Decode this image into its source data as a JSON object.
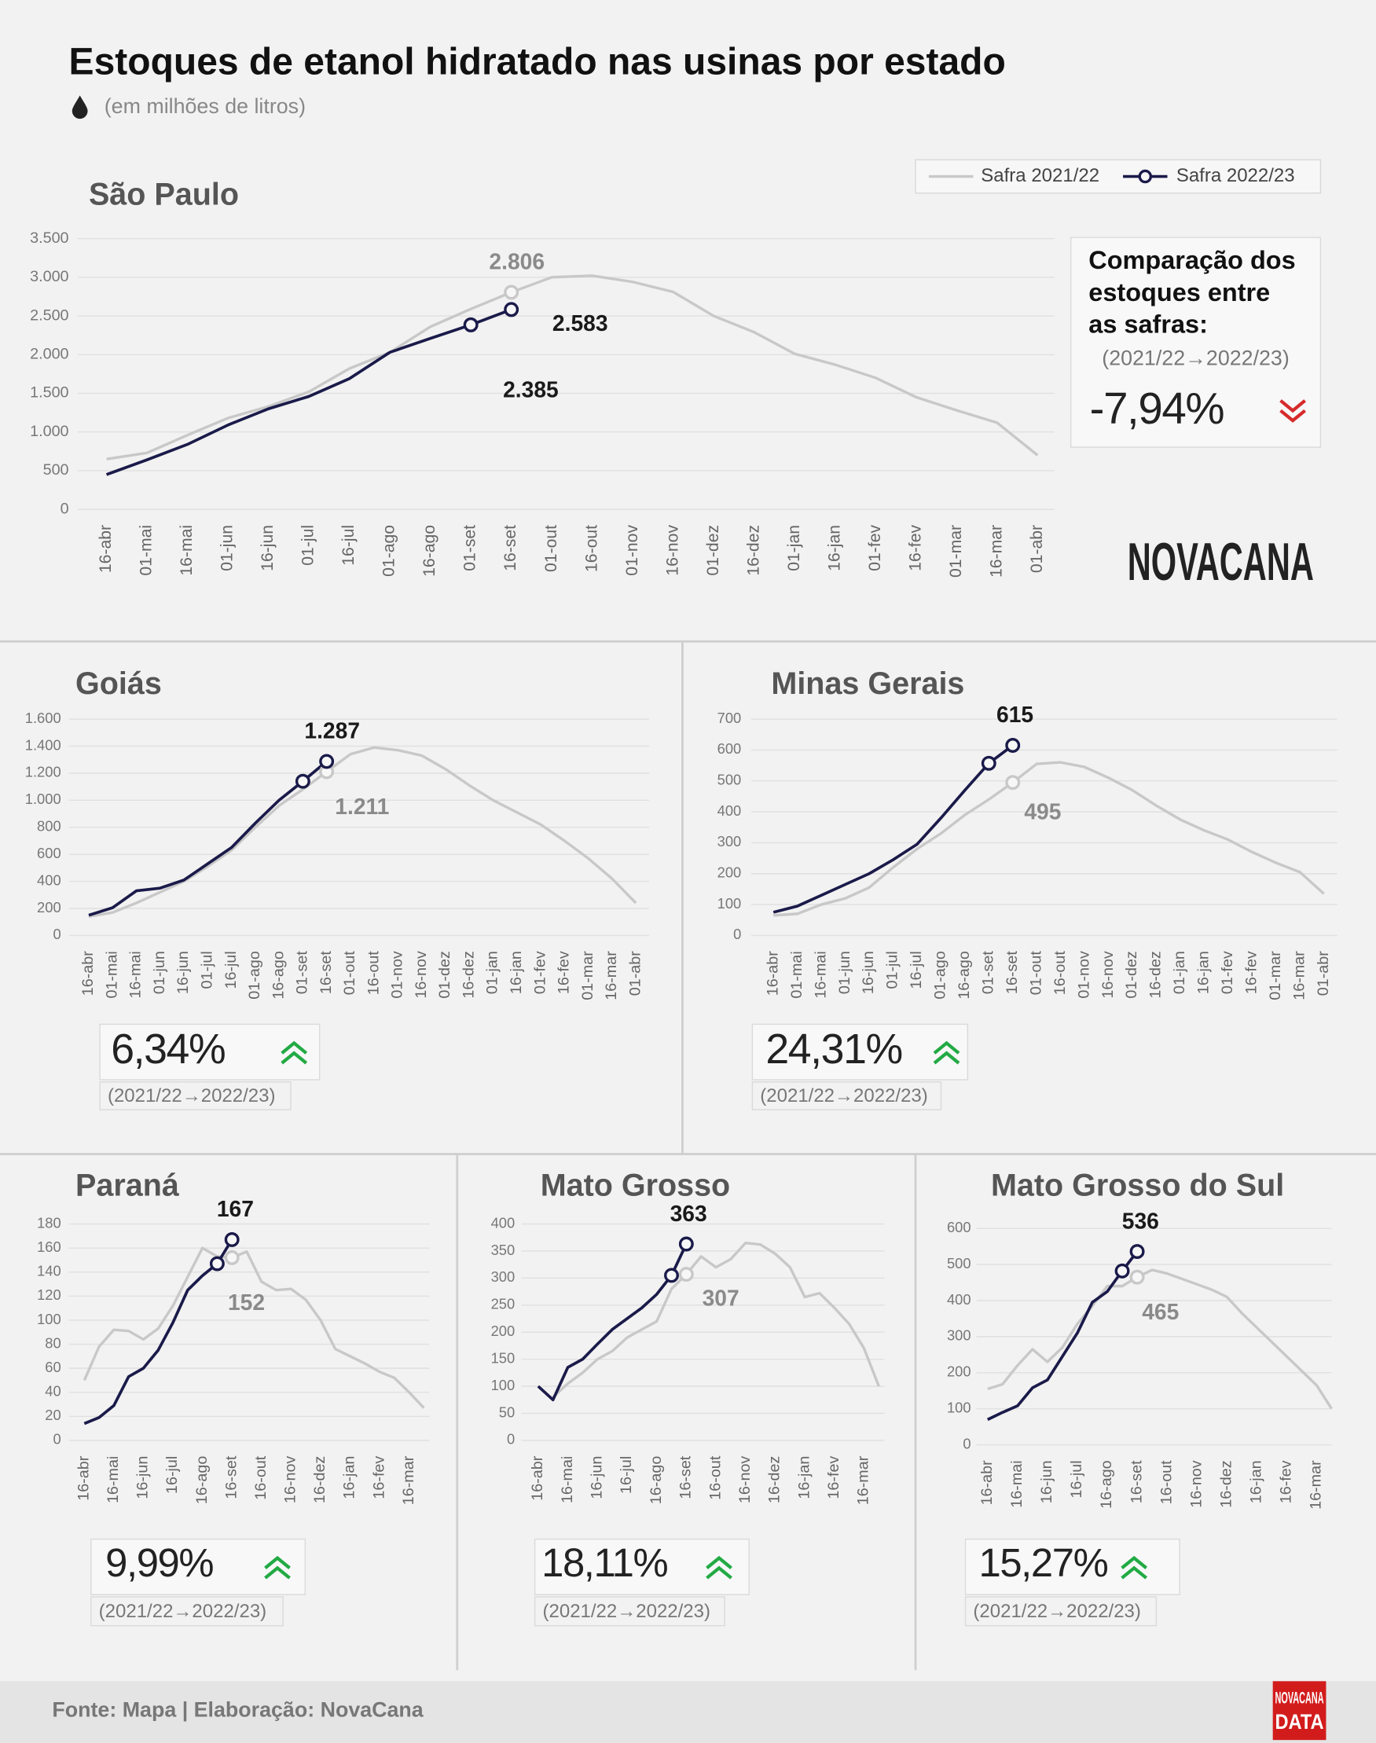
{
  "title": "Estoques de etanol hidratado nas usinas por estado",
  "subtitle": "(em milhões de litros)",
  "source": "Fonte: Mapa | Elaboração: NovaCana",
  "logo": "NOVACANA",
  "footer_logo": [
    "NOVACANA",
    "DATA"
  ],
  "chart_data": [
    {
      "type": "line",
      "title": "São Paulo",
      "categories": [
        "16-abr",
        "01-mai",
        "16-mai",
        "01-jun",
        "16-jun",
        "01-jul",
        "16-jul",
        "01-ago",
        "16-ago",
        "01-set",
        "16-set",
        "01-out",
        "16-out",
        "01-nov",
        "16-nov",
        "01-dez",
        "16-dez",
        "01-jan",
        "16-jan",
        "01-fev",
        "16-fev",
        "01-mar",
        "16-mar",
        "01-abr"
      ],
      "series": [
        {
          "name": "Safra 2021/22",
          "color": "#c8c8c8",
          "values": [
            650,
            730,
            960,
            1180,
            1330,
            1520,
            1820,
            2030,
            2360,
            2590,
            2806,
            3000,
            3020,
            2940,
            2810,
            2500,
            2290,
            2010,
            1870,
            1700,
            1450,
            1280,
            1120,
            700
          ],
          "value_labels": [
            null,
            null,
            null,
            null,
            null,
            null,
            null,
            null,
            null,
            null,
            "2.806",
            null,
            null,
            null,
            null,
            null,
            null,
            null,
            null,
            null,
            null,
            null,
            null,
            null
          ]
        },
        {
          "name": "Safra 2022/23",
          "color": "#1a1a4a",
          "values": [
            450,
            640,
            840,
            1090,
            1300,
            1460,
            1690,
            2030,
            2210,
            2385,
            2583,
            null,
            null,
            null,
            null,
            null,
            null,
            null,
            null,
            null,
            null,
            null,
            null,
            null
          ],
          "value_labels": [
            null,
            null,
            null,
            null,
            null,
            null,
            null,
            null,
            null,
            "2.385",
            "2.583",
            null,
            null,
            null,
            null,
            null,
            null,
            null,
            null,
            null,
            null,
            null,
            null,
            null
          ]
        }
      ],
      "ylim": [
        0,
        3500
      ],
      "yticks": [
        0,
        500,
        {
          "value": 1000,
          "label": "1.000"
        },
        {
          "value": 1500,
          "label": "1.500"
        },
        {
          "value": 2000,
          "label": "2.000"
        },
        {
          "value": 2500,
          "label": "2.500"
        },
        {
          "value": 3000,
          "label": "3.000"
        },
        {
          "value": 3500,
          "label": "3.500"
        }
      ],
      "grid": true,
      "legend": "top-right",
      "comparison_title": [
        "Comparação dos",
        "estoques entre",
        "as safras:"
      ],
      "comparison_period": "(2021/22→2022/23)",
      "comparison": "-7,94%",
      "trend": "down"
    },
    {
      "type": "line",
      "title": "Goiás",
      "categories": [
        "16-abr",
        "01-mai",
        "16-mai",
        "01-jun",
        "16-jun",
        "01-jul",
        "16-jul",
        "01-ago",
        "16-ago",
        "01-set",
        "16-set",
        "01-out",
        "16-out",
        "01-nov",
        "16-nov",
        "01-dez",
        "16-dez",
        "01-jan",
        "16-jan",
        "01-fev",
        "16-fev",
        "01-mar",
        "16-mar",
        "01-abr"
      ],
      "series": [
        {
          "color": "#c8c8c8",
          "values": [
            140,
            170,
            240,
            320,
            400,
            510,
            630,
            800,
            960,
            1080,
            1211,
            1340,
            1390,
            1370,
            1330,
            1230,
            1110,
            1000,
            910,
            820,
            700,
            570,
            420,
            240
          ],
          "value_labels": [
            null,
            null,
            null,
            null,
            null,
            null,
            null,
            null,
            null,
            null,
            "1.211",
            null,
            null,
            null,
            null,
            null,
            null,
            null,
            null,
            null,
            null,
            null,
            null,
            null
          ]
        },
        {
          "color": "#1a1a4a",
          "values": [
            150,
            205,
            330,
            350,
            410,
            530,
            650,
            830,
            1000,
            1140,
            1287,
            null,
            null,
            null,
            null,
            null,
            null,
            null,
            null,
            null,
            null,
            null,
            null,
            null
          ],
          "value_labels": [
            null,
            null,
            null,
            null,
            null,
            null,
            null,
            null,
            null,
            null,
            "1.287",
            null,
            null,
            null,
            null,
            null,
            null,
            null,
            null,
            null,
            null,
            null,
            null,
            null
          ]
        }
      ],
      "ylim": [
        0,
        1600
      ],
      "yticks": [
        0,
        200,
        400,
        600,
        800,
        {
          "value": 1000,
          "label": "1.000"
        },
        {
          "value": 1200,
          "label": "1.200"
        },
        {
          "value": 1400,
          "label": "1.400"
        },
        {
          "value": 1600,
          "label": "1.600"
        }
      ],
      "grid": true,
      "comparison_period": "(2021/22→2022/23)",
      "comparison": "6,34%",
      "trend": "up"
    },
    {
      "type": "line",
      "title": "Minas Gerais",
      "categories": [
        "16-abr",
        "01-mai",
        "16-mai",
        "01-jun",
        "16-jun",
        "01-jul",
        "16-jul",
        "01-ago",
        "16-ago",
        "01-set",
        "16-set",
        "01-out",
        "16-out",
        "01-nov",
        "16-nov",
        "01-dez",
        "16-dez",
        "01-jan",
        "16-jan",
        "01-fev",
        "16-fev",
        "01-mar",
        "16-mar",
        "01-abr"
      ],
      "series": [
        {
          "color": "#c8c8c8",
          "values": [
            65,
            70,
            100,
            120,
            155,
            220,
            280,
            330,
            390,
            440,
            495,
            555,
            560,
            545,
            510,
            470,
            420,
            375,
            340,
            310,
            270,
            235,
            205,
            135
          ],
          "value_labels": [
            null,
            null,
            null,
            null,
            null,
            null,
            null,
            null,
            null,
            null,
            "495",
            null,
            null,
            null,
            null,
            null,
            null,
            null,
            null,
            null,
            null,
            null,
            null,
            null
          ]
        },
        {
          "color": "#1a1a4a",
          "values": [
            75,
            95,
            130,
            165,
            200,
            245,
            295,
            380,
            470,
            557,
            615,
            null,
            null,
            null,
            null,
            null,
            null,
            null,
            null,
            null,
            null,
            null,
            null,
            null
          ],
          "value_labels": [
            null,
            null,
            null,
            null,
            null,
            null,
            null,
            null,
            null,
            null,
            "615",
            null,
            null,
            null,
            null,
            null,
            null,
            null,
            null,
            null,
            null,
            null,
            null,
            null
          ]
        }
      ],
      "ylim": [
        0,
        700
      ],
      "yticks": [
        0,
        100,
        200,
        300,
        400,
        500,
        600,
        700
      ],
      "grid": true,
      "comparison_period": "(2021/22→2022/23)",
      "comparison": "24,31%",
      "trend": "up"
    },
    {
      "type": "line",
      "title": "Paraná",
      "categories": [
        "16-abr",
        null,
        "16-mai",
        null,
        "16-jun",
        null,
        "16-jul",
        null,
        "16-ago",
        null,
        "16-set",
        null,
        "16-out",
        null,
        "16-nov",
        null,
        "16-dez",
        null,
        "16-jan",
        null,
        "16-fev",
        null,
        "16-mar",
        null
      ],
      "series": [
        {
          "color": "#c8c8c8",
          "values": [
            50,
            78,
            92,
            91,
            84,
            93,
            112,
            136,
            160,
            153,
            152,
            157,
            132,
            125,
            126,
            117,
            100,
            76,
            70,
            64,
            57,
            52,
            40,
            27
          ],
          "value_labels": [
            null,
            null,
            null,
            null,
            null,
            null,
            null,
            null,
            null,
            null,
            "152",
            null,
            null,
            null,
            null,
            null,
            null,
            null,
            null,
            null,
            null,
            null,
            null,
            null
          ]
        },
        {
          "color": "#1a1a4a",
          "values": [
            14,
            19,
            29,
            53,
            60,
            75,
            98,
            125,
            137,
            147,
            167,
            null,
            null,
            null,
            null,
            null,
            null,
            null,
            null,
            null,
            null,
            null,
            null,
            null
          ],
          "value_labels": [
            null,
            null,
            null,
            null,
            null,
            null,
            null,
            null,
            null,
            null,
            "167",
            null,
            null,
            null,
            null,
            null,
            null,
            null,
            null,
            null,
            null,
            null,
            null,
            null
          ]
        }
      ],
      "ylim": [
        0,
        180
      ],
      "yticks": [
        0,
        20,
        40,
        60,
        80,
        100,
        120,
        140,
        160,
        180
      ],
      "grid": true,
      "comparison_period": "(2021/22→2022/23)",
      "comparison": "9,99%",
      "trend": "up"
    },
    {
      "type": "line",
      "title": "Mato Grosso",
      "categories": [
        "16-abr",
        null,
        "16-mai",
        null,
        "16-jun",
        null,
        "16-jul",
        null,
        "16-ago",
        null,
        "16-set",
        null,
        "16-out",
        null,
        "16-nov",
        null,
        "16-dez",
        null,
        "16-jan",
        null,
        "16-fev",
        null,
        "16-mar",
        null
      ],
      "series": [
        {
          "color": "#c8c8c8",
          "values": [
            null,
            80,
            105,
            125,
            150,
            165,
            190,
            205,
            220,
            280,
            307,
            340,
            320,
            335,
            365,
            362,
            345,
            320,
            265,
            272,
            245,
            215,
            170,
            100
          ],
          "value_labels": [
            null,
            null,
            null,
            null,
            null,
            null,
            null,
            null,
            null,
            null,
            "307",
            null,
            null,
            null,
            null,
            null,
            null,
            null,
            null,
            null,
            null,
            null,
            null,
            null
          ]
        },
        {
          "color": "#1a1a4a",
          "values": [
            100,
            75,
            135,
            150,
            178,
            205,
            225,
            245,
            270,
            305,
            363,
            null,
            null,
            null,
            null,
            null,
            null,
            null,
            null,
            null,
            null,
            null,
            null,
            null
          ],
          "value_labels": [
            null,
            null,
            null,
            null,
            null,
            null,
            null,
            null,
            null,
            null,
            "363",
            null,
            null,
            null,
            null,
            null,
            null,
            null,
            null,
            null,
            null,
            null,
            null,
            null
          ]
        }
      ],
      "ylim": [
        0,
        400
      ],
      "yticks": [
        0,
        50,
        100,
        150,
        200,
        250,
        300,
        350,
        400
      ],
      "grid": true,
      "comparison_period": "(2021/22→2022/23)",
      "comparison": "18,11%",
      "trend": "up"
    },
    {
      "type": "line",
      "title": "Mato Grosso do Sul",
      "categories": [
        "16-abr",
        null,
        "16-mai",
        null,
        "16-jun",
        null,
        "16-jul",
        null,
        "16-ago",
        null,
        "16-set",
        null,
        "16-out",
        null,
        "16-nov",
        null,
        "16-dez",
        null,
        "16-jan",
        null,
        "16-fev",
        null,
        "16-mar",
        null
      ],
      "series": [
        {
          "color": "#c8c8c8",
          "values": [
            155,
            168,
            220,
            265,
            230,
            270,
            335,
            385,
            440,
            440,
            465,
            485,
            475,
            460,
            445,
            430,
            410,
            365,
            325,
            285,
            245,
            205,
            165,
            100
          ],
          "value_labels": [
            null,
            null,
            null,
            null,
            null,
            null,
            null,
            null,
            null,
            null,
            "465",
            null,
            null,
            null,
            null,
            null,
            null,
            null,
            null,
            null,
            null,
            null,
            null,
            null
          ]
        },
        {
          "color": "#1a1a4a",
          "values": [
            70,
            90,
            108,
            158,
            180,
            245,
            310,
            395,
            425,
            482,
            536,
            null,
            null,
            null,
            null,
            null,
            null,
            null,
            null,
            null,
            null,
            null,
            null,
            null
          ],
          "value_labels": [
            null,
            null,
            null,
            null,
            null,
            null,
            null,
            null,
            null,
            null,
            "536",
            null,
            null,
            null,
            null,
            null,
            null,
            null,
            null,
            null,
            null,
            null,
            null,
            null
          ]
        }
      ],
      "ylim": [
        0,
        600
      ],
      "yticks": [
        0,
        100,
        200,
        300,
        400,
        500,
        600
      ],
      "grid": true,
      "comparison_period": "(2021/22→2022/23)",
      "comparison": "15,27%",
      "trend": "up"
    }
  ]
}
